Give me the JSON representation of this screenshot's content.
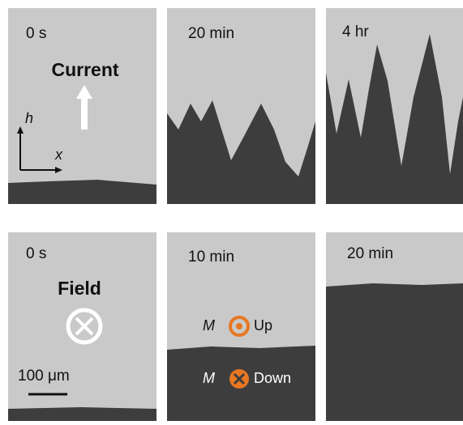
{
  "panels": [
    {
      "time": "0 s",
      "label": "Current",
      "axis_h": "h",
      "axis_x": "x"
    },
    {
      "time": "20 min"
    },
    {
      "time": "4 hr"
    },
    {
      "time": "0 s",
      "label": "Field",
      "scale_bar": "100 μm"
    },
    {
      "time": "10 min",
      "legend": [
        {
          "symbol": "M",
          "text": "Up"
        },
        {
          "symbol": "M",
          "text": "Down"
        }
      ]
    },
    {
      "time": "20 min"
    }
  ]
}
